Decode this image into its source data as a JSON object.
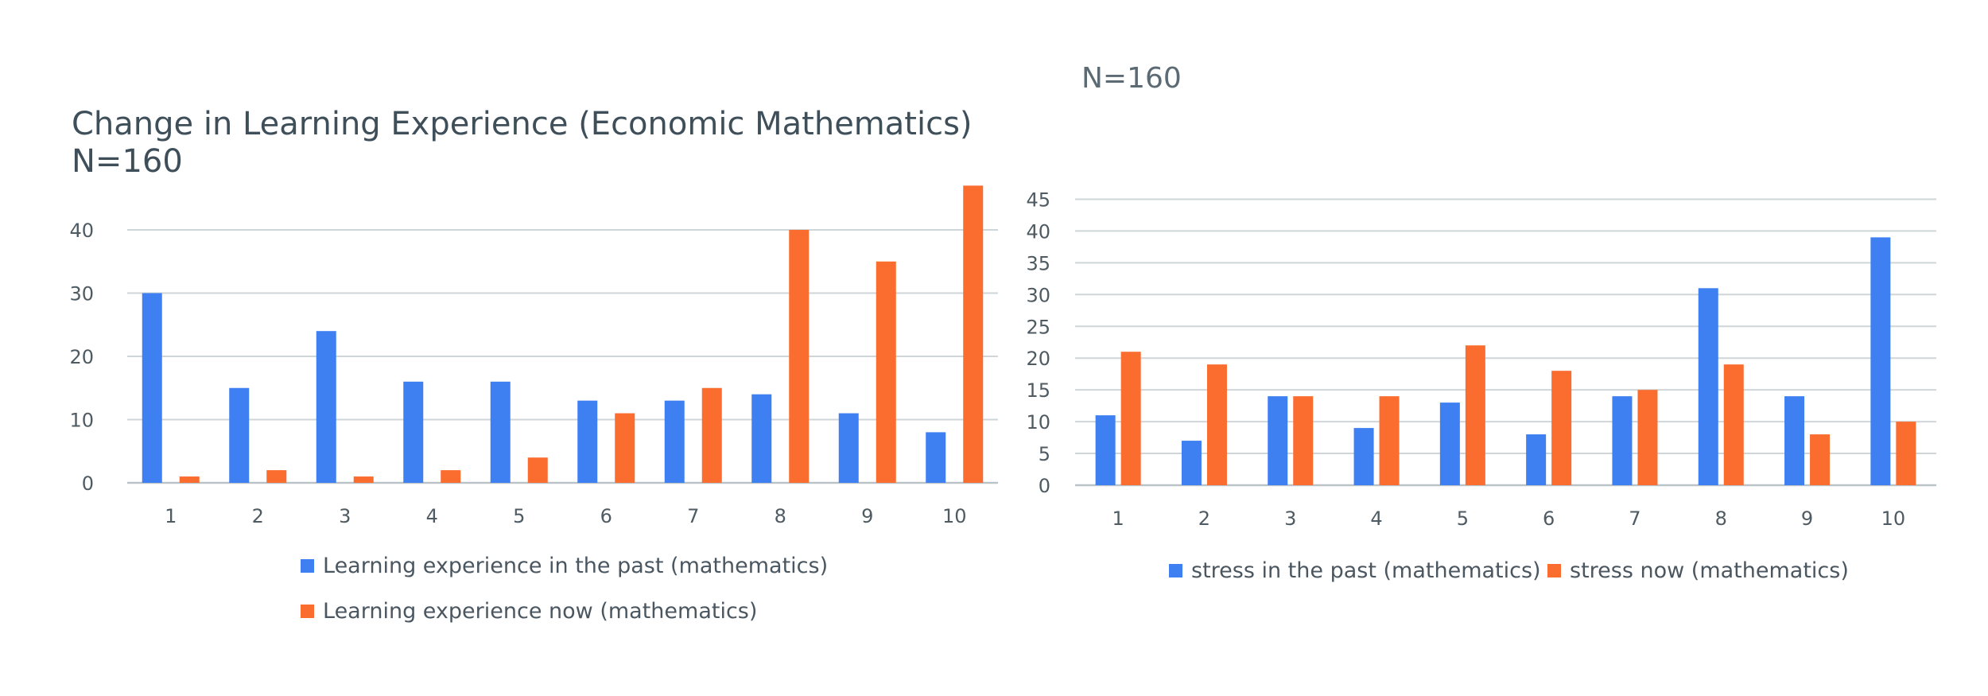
{
  "charts": [
    {
      "title": "Change in Learning Experience (Economic Mathematics)",
      "subtitle": "N=160"
    },
    {
      "title": "",
      "subtitle": "N=160"
    }
  ],
  "chart_data": [
    {
      "type": "bar",
      "title": "Change in Learning Experience (Economic Mathematics)",
      "subtitle": "N=160",
      "categories": [
        "1",
        "2",
        "3",
        "4",
        "5",
        "6",
        "7",
        "8",
        "9",
        "10"
      ],
      "series": [
        {
          "name": "Learning experience in the past (mathematics)",
          "color": "#3e7ff2",
          "values": [
            30,
            15,
            24,
            16,
            16,
            13,
            13,
            14,
            11,
            8
          ]
        },
        {
          "name": "Learning experience now (mathematics)",
          "color": "#fb6c2f",
          "values": [
            1,
            2,
            1,
            2,
            4,
            11,
            15,
            40,
            35,
            47
          ]
        }
      ],
      "yticks": [
        "0",
        "10",
        "20",
        "30",
        "40"
      ],
      "ylim": [
        0,
        50
      ],
      "grid": true,
      "legend": "bottom"
    },
    {
      "type": "bar",
      "title": "",
      "subtitle": "N=160",
      "categories": [
        "1",
        "2",
        "3",
        "4",
        "5",
        "6",
        "7",
        "8",
        "9",
        "10"
      ],
      "series": [
        {
          "name": "stress in the past (mathematics)",
          "color": "#3e7ff2",
          "values": [
            11,
            7,
            14,
            9,
            13,
            8,
            14,
            31,
            14,
            39
          ]
        },
        {
          "name": "stress now (mathematics)",
          "color": "#fb6c2f",
          "values": [
            21,
            19,
            14,
            14,
            22,
            18,
            15,
            19,
            8,
            10
          ]
        }
      ],
      "yticks": [
        "0",
        "5",
        "10",
        "15",
        "20",
        "25",
        "30",
        "35",
        "40",
        "45"
      ],
      "ylim": [
        0,
        45
      ],
      "grid": true,
      "legend": "bottom"
    }
  ]
}
